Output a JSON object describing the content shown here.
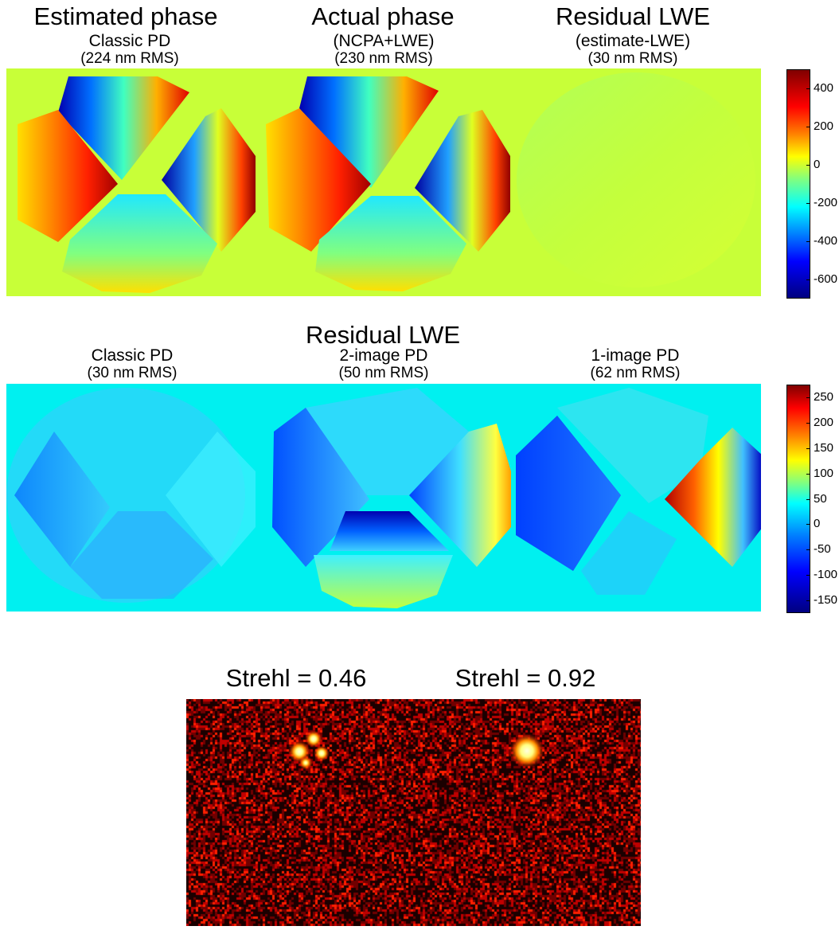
{
  "top_row": {
    "titles": [
      {
        "title": "Estimated phase",
        "sub1": "Classic PD",
        "sub2": "(224 nm RMS)"
      },
      {
        "title": "Actual phase",
        "sub1": "(NCPA+LWE)",
        "sub2": "(230 nm RMS)"
      },
      {
        "title": "Residual LWE",
        "sub1": "(estimate-LWE)",
        "sub2": "(30 nm RMS)"
      }
    ],
    "colorbar_ticks": [
      "400",
      "200",
      "0",
      "-200",
      "-400",
      "-600"
    ],
    "colorbar_range": [
      -700,
      500
    ]
  },
  "middle_row": {
    "header": "Residual LWE",
    "titles": [
      {
        "sub1": "Classic PD",
        "sub2": "(30 nm RMS)"
      },
      {
        "sub1": "2-image PD",
        "sub2": "(50 nm RMS)"
      },
      {
        "sub1": "1-image PD",
        "sub2": "(62 nm RMS)"
      }
    ],
    "colorbar_ticks": [
      "250",
      "200",
      "150",
      "100",
      "50",
      "0",
      "-50",
      "-100",
      "-150"
    ],
    "colorbar_range": [
      -175,
      275
    ]
  },
  "bottom_row": {
    "labels": [
      "Strehl = 0.46",
      "Strehl = 0.92"
    ]
  },
  "colors": {
    "background_phase": "#c8ff38",
    "background_residual": "#00f0f0",
    "noise_dark": "#200000",
    "noise_red": "#d00000",
    "spot": "#ffffc0"
  }
}
